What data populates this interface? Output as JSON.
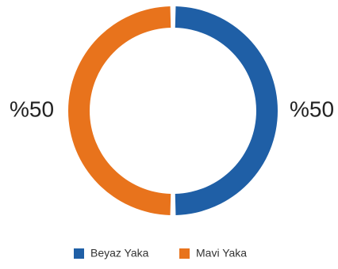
{
  "chart_data": {
    "type": "pie",
    "donut": true,
    "title": "",
    "categories": [
      "Beyaz Yaka",
      "Mavi Yaka"
    ],
    "values": [
      50,
      50
    ],
    "data_labels": [
      "%50",
      "%50"
    ],
    "colors": [
      "#1f5fa6",
      "#e8731c"
    ],
    "legend": {
      "placement": "bottom-center",
      "entries": [
        "Beyaz Yaka",
        "Mavi Yaka"
      ]
    }
  }
}
